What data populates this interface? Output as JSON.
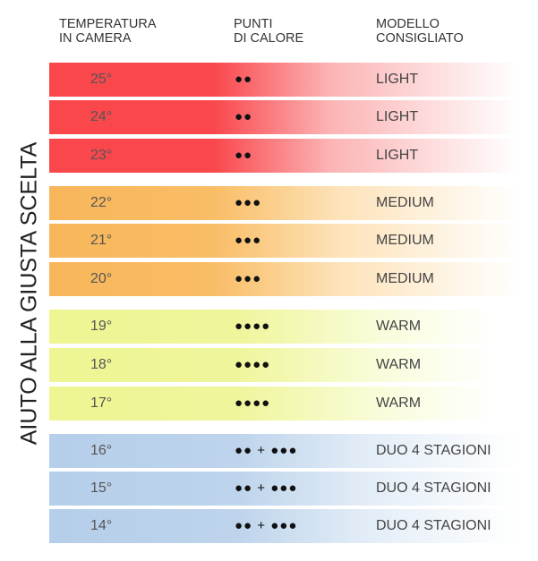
{
  "headers": {
    "temperature": "TEMPERATURA\nIN CAMERA",
    "points": "PUNTI\nDI CALORE",
    "model": "MODELLO\nCONSIGLIATO"
  },
  "side_title": "AIUTO ALLA GIUSTA SCELTA",
  "colors": {
    "light": "#f9474c",
    "medium": "#f8b65a",
    "warm": "#eef592",
    "duo": "#b5cee9"
  },
  "rows": [
    {
      "temp": "25°",
      "points": "●●",
      "model": "LIGHT",
      "group": "red"
    },
    {
      "temp": "24°",
      "points": "●●",
      "model": "LIGHT",
      "group": "red"
    },
    {
      "temp": "23°",
      "points": "●●",
      "model": "LIGHT",
      "group": "red"
    },
    {
      "temp": "22°",
      "points": "●●●",
      "model": "MEDIUM",
      "group": "orange"
    },
    {
      "temp": "21°",
      "points": "●●●",
      "model": "MEDIUM",
      "group": "orange"
    },
    {
      "temp": "20°",
      "points": "●●●",
      "model": "MEDIUM",
      "group": "orange"
    },
    {
      "temp": "19°",
      "points": "●●●●",
      "model": "WARM",
      "group": "yellow"
    },
    {
      "temp": "18°",
      "points": "●●●●",
      "model": "WARM",
      "group": "yellow"
    },
    {
      "temp": "17°",
      "points": "●●●●",
      "model": "WARM",
      "group": "yellow"
    },
    {
      "temp": "16°",
      "points": "●● + ●●●",
      "model": "DUO 4 STAGIONI",
      "group": "blue"
    },
    {
      "temp": "15°",
      "points": "●● + ●●●",
      "model": "DUO 4 STAGIONI",
      "group": "blue"
    },
    {
      "temp": "14°",
      "points": "●● + ●●●",
      "model": "DUO 4 STAGIONI",
      "group": "blue"
    }
  ]
}
